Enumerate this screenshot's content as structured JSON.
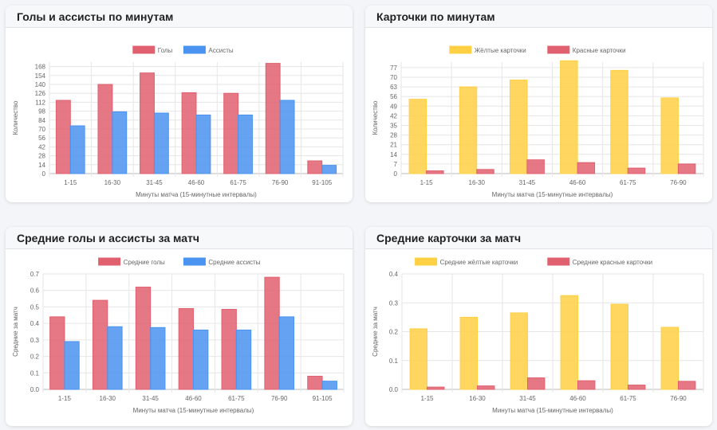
{
  "colors": {
    "red": "#e0606f",
    "blue": "#4a93f0",
    "yellow": "#ffd044"
  },
  "charts": [
    {
      "title": "Голы и ассисты по минутам",
      "chart_data": {
        "type": "bar",
        "categories": [
          "1-15",
          "16-30",
          "31-45",
          "46-60",
          "61-75",
          "76-90",
          "91-105"
        ],
        "series": [
          {
            "name": "Голы",
            "values": [
              115,
              140,
              158,
              127,
              126,
              173,
              20
            ],
            "color": "#e0606f"
          },
          {
            "name": "Ассисты",
            "values": [
              75,
              97,
              95,
              92,
              92,
              115,
              13
            ],
            "color": "#4a93f0"
          }
        ],
        "yticks": [
          "0",
          "14",
          "28",
          "42",
          "56",
          "70",
          "84",
          "98",
          "112",
          "126",
          "140",
          "154",
          "168"
        ],
        "ylim": [
          0,
          175
        ],
        "xlabel": "Минуты матча (15-минутные интервалы)",
        "ylabel": "Количество",
        "grid": true,
        "legend": "top"
      }
    },
    {
      "title": "Карточки по минутам",
      "chart_data": {
        "type": "bar",
        "categories": [
          "1-15",
          "16-30",
          "31-45",
          "46-60",
          "61-75",
          "76-90"
        ],
        "series": [
          {
            "name": "Жёлтые карточки",
            "values": [
              54,
              63,
              68,
              82,
              75,
              55
            ],
            "color": "#ffd044"
          },
          {
            "name": "Красные карточки",
            "values": [
              2,
              3,
              10,
              8,
              4,
              7
            ],
            "color": "#e0606f"
          }
        ],
        "yticks": [
          "0",
          "7",
          "14",
          "21",
          "28",
          "35",
          "42",
          "49",
          "56",
          "63",
          "70",
          "77"
        ],
        "ylim": [
          0,
          81
        ],
        "xlabel": "Минуты матча (15-минутные интервалы)",
        "ylabel": "Количество",
        "grid": true,
        "legend": "top"
      }
    },
    {
      "title": "Средние голы и ассисты за матч",
      "chart_data": {
        "type": "bar",
        "categories": [
          "1-15",
          "16-30",
          "31-45",
          "46-60",
          "61-75",
          "76-90",
          "91-105"
        ],
        "series": [
          {
            "name": "Средние голы",
            "values": [
              0.44,
              0.54,
              0.62,
              0.49,
              0.485,
              0.68,
              0.08
            ],
            "color": "#e0606f"
          },
          {
            "name": "Средние ассисты",
            "values": [
              0.29,
              0.38,
              0.375,
              0.36,
              0.36,
              0.44,
              0.05
            ],
            "color": "#4a93f0"
          }
        ],
        "yticks": [
          "0.0",
          "0.1",
          "0.2",
          "0.3",
          "0.4",
          "0.5",
          "0.6",
          "0.7"
        ],
        "ylim": [
          0,
          0.7
        ],
        "xlabel": "Минуты матча (15-минутные интервалы)",
        "ylabel": "Средние за матч",
        "grid": true,
        "legend": "top"
      }
    },
    {
      "title": "Средние карточки за матч",
      "chart_data": {
        "type": "bar",
        "categories": [
          "1-15",
          "16-30",
          "31-45",
          "46-60",
          "61-75",
          "76-90"
        ],
        "series": [
          {
            "name": "Средние жёлтые карточки",
            "values": [
              0.21,
              0.25,
              0.265,
              0.325,
              0.295,
              0.215
            ],
            "color": "#ffd044"
          },
          {
            "name": "Средние красные карточки",
            "values": [
              0.008,
              0.012,
              0.04,
              0.03,
              0.015,
              0.028
            ],
            "color": "#e0606f"
          }
        ],
        "yticks": [
          "0.0",
          "0.1",
          "0.2",
          "0.3",
          "0.4"
        ],
        "ylim": [
          0,
          0.4
        ],
        "xlabel": "Минуты матча (15-минутные интервалы)",
        "ylabel": "Средние за матч",
        "grid": true,
        "legend": "top"
      }
    }
  ]
}
